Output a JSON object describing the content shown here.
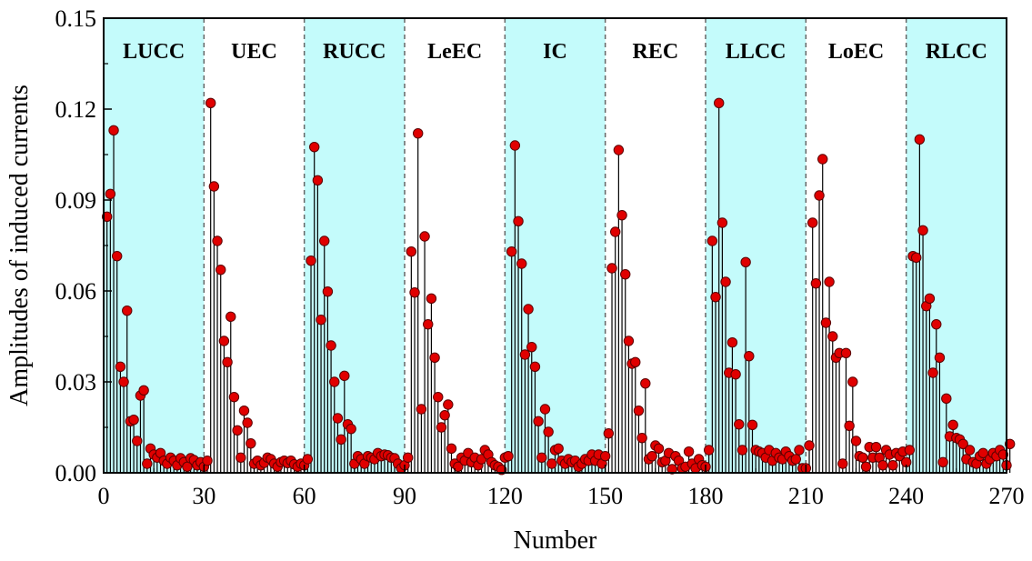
{
  "chart_data": {
    "type": "stem",
    "xlabel": "Number",
    "ylabel": "Amplitudes of induced currents",
    "xlim": [
      0,
      270
    ],
    "ylim": [
      0,
      0.15
    ],
    "x_ticks": [
      "0",
      "30",
      "60",
      "90",
      "120",
      "150",
      "180",
      "210",
      "240",
      "270"
    ],
    "y_ticks": [
      "0.00",
      "0.03",
      "0.06",
      "0.09",
      "0.12",
      "0.15"
    ],
    "colors": {
      "marker": "#e00000",
      "shaded_region": "#c4fbfb",
      "stem": "#000000",
      "divider": "#666666"
    },
    "regions": [
      {
        "label": "LUCC",
        "start": 0,
        "end": 30,
        "shaded": true
      },
      {
        "label": "UEC",
        "start": 30,
        "end": 60,
        "shaded": false
      },
      {
        "label": "RUCC",
        "start": 60,
        "end": 90,
        "shaded": true
      },
      {
        "label": "LeEC",
        "start": 90,
        "end": 120,
        "shaded": false
      },
      {
        "label": "IC",
        "start": 120,
        "end": 150,
        "shaded": true
      },
      {
        "label": "REC",
        "start": 150,
        "end": 180,
        "shaded": false
      },
      {
        "label": "LLCC",
        "start": 180,
        "end": 210,
        "shaded": true
      },
      {
        "label": "LoEC",
        "start": 210,
        "end": 240,
        "shaded": false
      },
      {
        "label": "RLCC",
        "start": 240,
        "end": 270,
        "shaded": true
      }
    ],
    "series": [
      {
        "values": [
          0.0845,
          0.092,
          0.113,
          0.0715,
          0.035,
          0.03,
          0.0535,
          0.017,
          0.0175,
          0.0105,
          0.0255,
          0.0272,
          0.003,
          0.008,
          0.006,
          0.005,
          0.0065,
          0.004,
          0.003,
          0.005,
          0.004,
          0.0025,
          0.0048,
          0.0035,
          0.002,
          0.0048,
          0.0042,
          0.0025,
          0.0035,
          0.002,
          0.004,
          0.122,
          0.0945,
          0.0765,
          0.067,
          0.0435,
          0.0365,
          0.0515,
          0.025,
          0.014,
          0.005,
          0.0205,
          0.0165,
          0.0097,
          0.003,
          0.004,
          0.0025,
          0.0033,
          0.005,
          0.0045,
          0.003,
          0.002,
          0.0035,
          0.004,
          0.0032,
          0.004,
          0.0028,
          0.002,
          0.003,
          0.0025,
          0.0045,
          0.07,
          0.1075,
          0.0965,
          0.0505,
          0.0765,
          0.0598,
          0.042,
          0.03,
          0.018,
          0.011,
          0.032,
          0.016,
          0.0145,
          0.003,
          0.0055,
          0.0045,
          0.003,
          0.0055,
          0.005,
          0.0045,
          0.0065,
          0.0055,
          0.006,
          0.0058,
          0.005,
          0.0048,
          0.003,
          0.0015,
          0.0025,
          0.005,
          0.073,
          0.0595,
          0.112,
          0.021,
          0.078,
          0.049,
          0.0575,
          0.038,
          0.025,
          0.015,
          0.019,
          0.0225,
          0.008,
          0.003,
          0.002,
          0.005,
          0.004,
          0.0065,
          0.0035,
          0.005,
          0.0025,
          0.0045,
          0.0075,
          0.006,
          0.0035,
          0.0025,
          0.002,
          0.001,
          0.005,
          0.0055,
          0.073,
          0.108,
          0.083,
          0.069,
          0.039,
          0.054,
          0.0415,
          0.035,
          0.017,
          0.005,
          0.021,
          0.0135,
          0.003,
          0.0075,
          0.008,
          0.004,
          0.003,
          0.0045,
          0.0035,
          0.004,
          0.002,
          0.003,
          0.0045,
          0.004,
          0.006,
          0.004,
          0.006,
          0.003,
          0.0055,
          0.013,
          0.0675,
          0.0795,
          0.1065,
          0.085,
          0.0655,
          0.0435,
          0.036,
          0.0365,
          0.0205,
          0.0115,
          0.0295,
          0.0045,
          0.0055,
          0.009,
          0.008,
          0.0035,
          0.004,
          0.0065,
          0.0012,
          0.0055,
          0.004,
          0.0015,
          0.002,
          0.007,
          0.003,
          0.0015,
          0.0045,
          0.0025,
          0.002,
          0.0075,
          0.0765,
          0.058,
          0.122,
          0.0825,
          0.063,
          0.033,
          0.043,
          0.0325,
          0.016,
          0.0075,
          0.0695,
          0.0385,
          0.0158,
          0.0075,
          0.007,
          0.0065,
          0.005,
          0.0075,
          0.004,
          0.0065,
          0.005,
          0.0045,
          0.007,
          0.0055,
          0.004,
          0.0045,
          0.0075,
          0.0015,
          0.0015,
          0.009,
          0.0825,
          0.0625,
          0.0915,
          0.1035,
          0.0495,
          0.063,
          0.045,
          0.038,
          0.0395,
          0.003,
          0.0395,
          0.0155,
          0.03,
          0.0105,
          0.0055,
          0.005,
          0.002,
          0.0085,
          0.005,
          0.0085,
          0.005,
          0.0025,
          0.0075,
          0.006,
          0.0025,
          0.0065,
          0.0055,
          0.007,
          0.0035,
          0.0075,
          0.0715,
          0.071,
          0.11,
          0.08,
          0.055,
          0.0575,
          0.033,
          0.049,
          0.038,
          0.0035,
          0.0245,
          0.012,
          0.0158,
          0.0115,
          0.011,
          0.0095,
          0.0045,
          0.0075,
          0.0035,
          0.003,
          0.0055,
          0.0065,
          0.003,
          0.0045,
          0.0065,
          0.0055,
          0.0075,
          0.006,
          0.0025,
          0.0095
        ]
      }
    ]
  }
}
